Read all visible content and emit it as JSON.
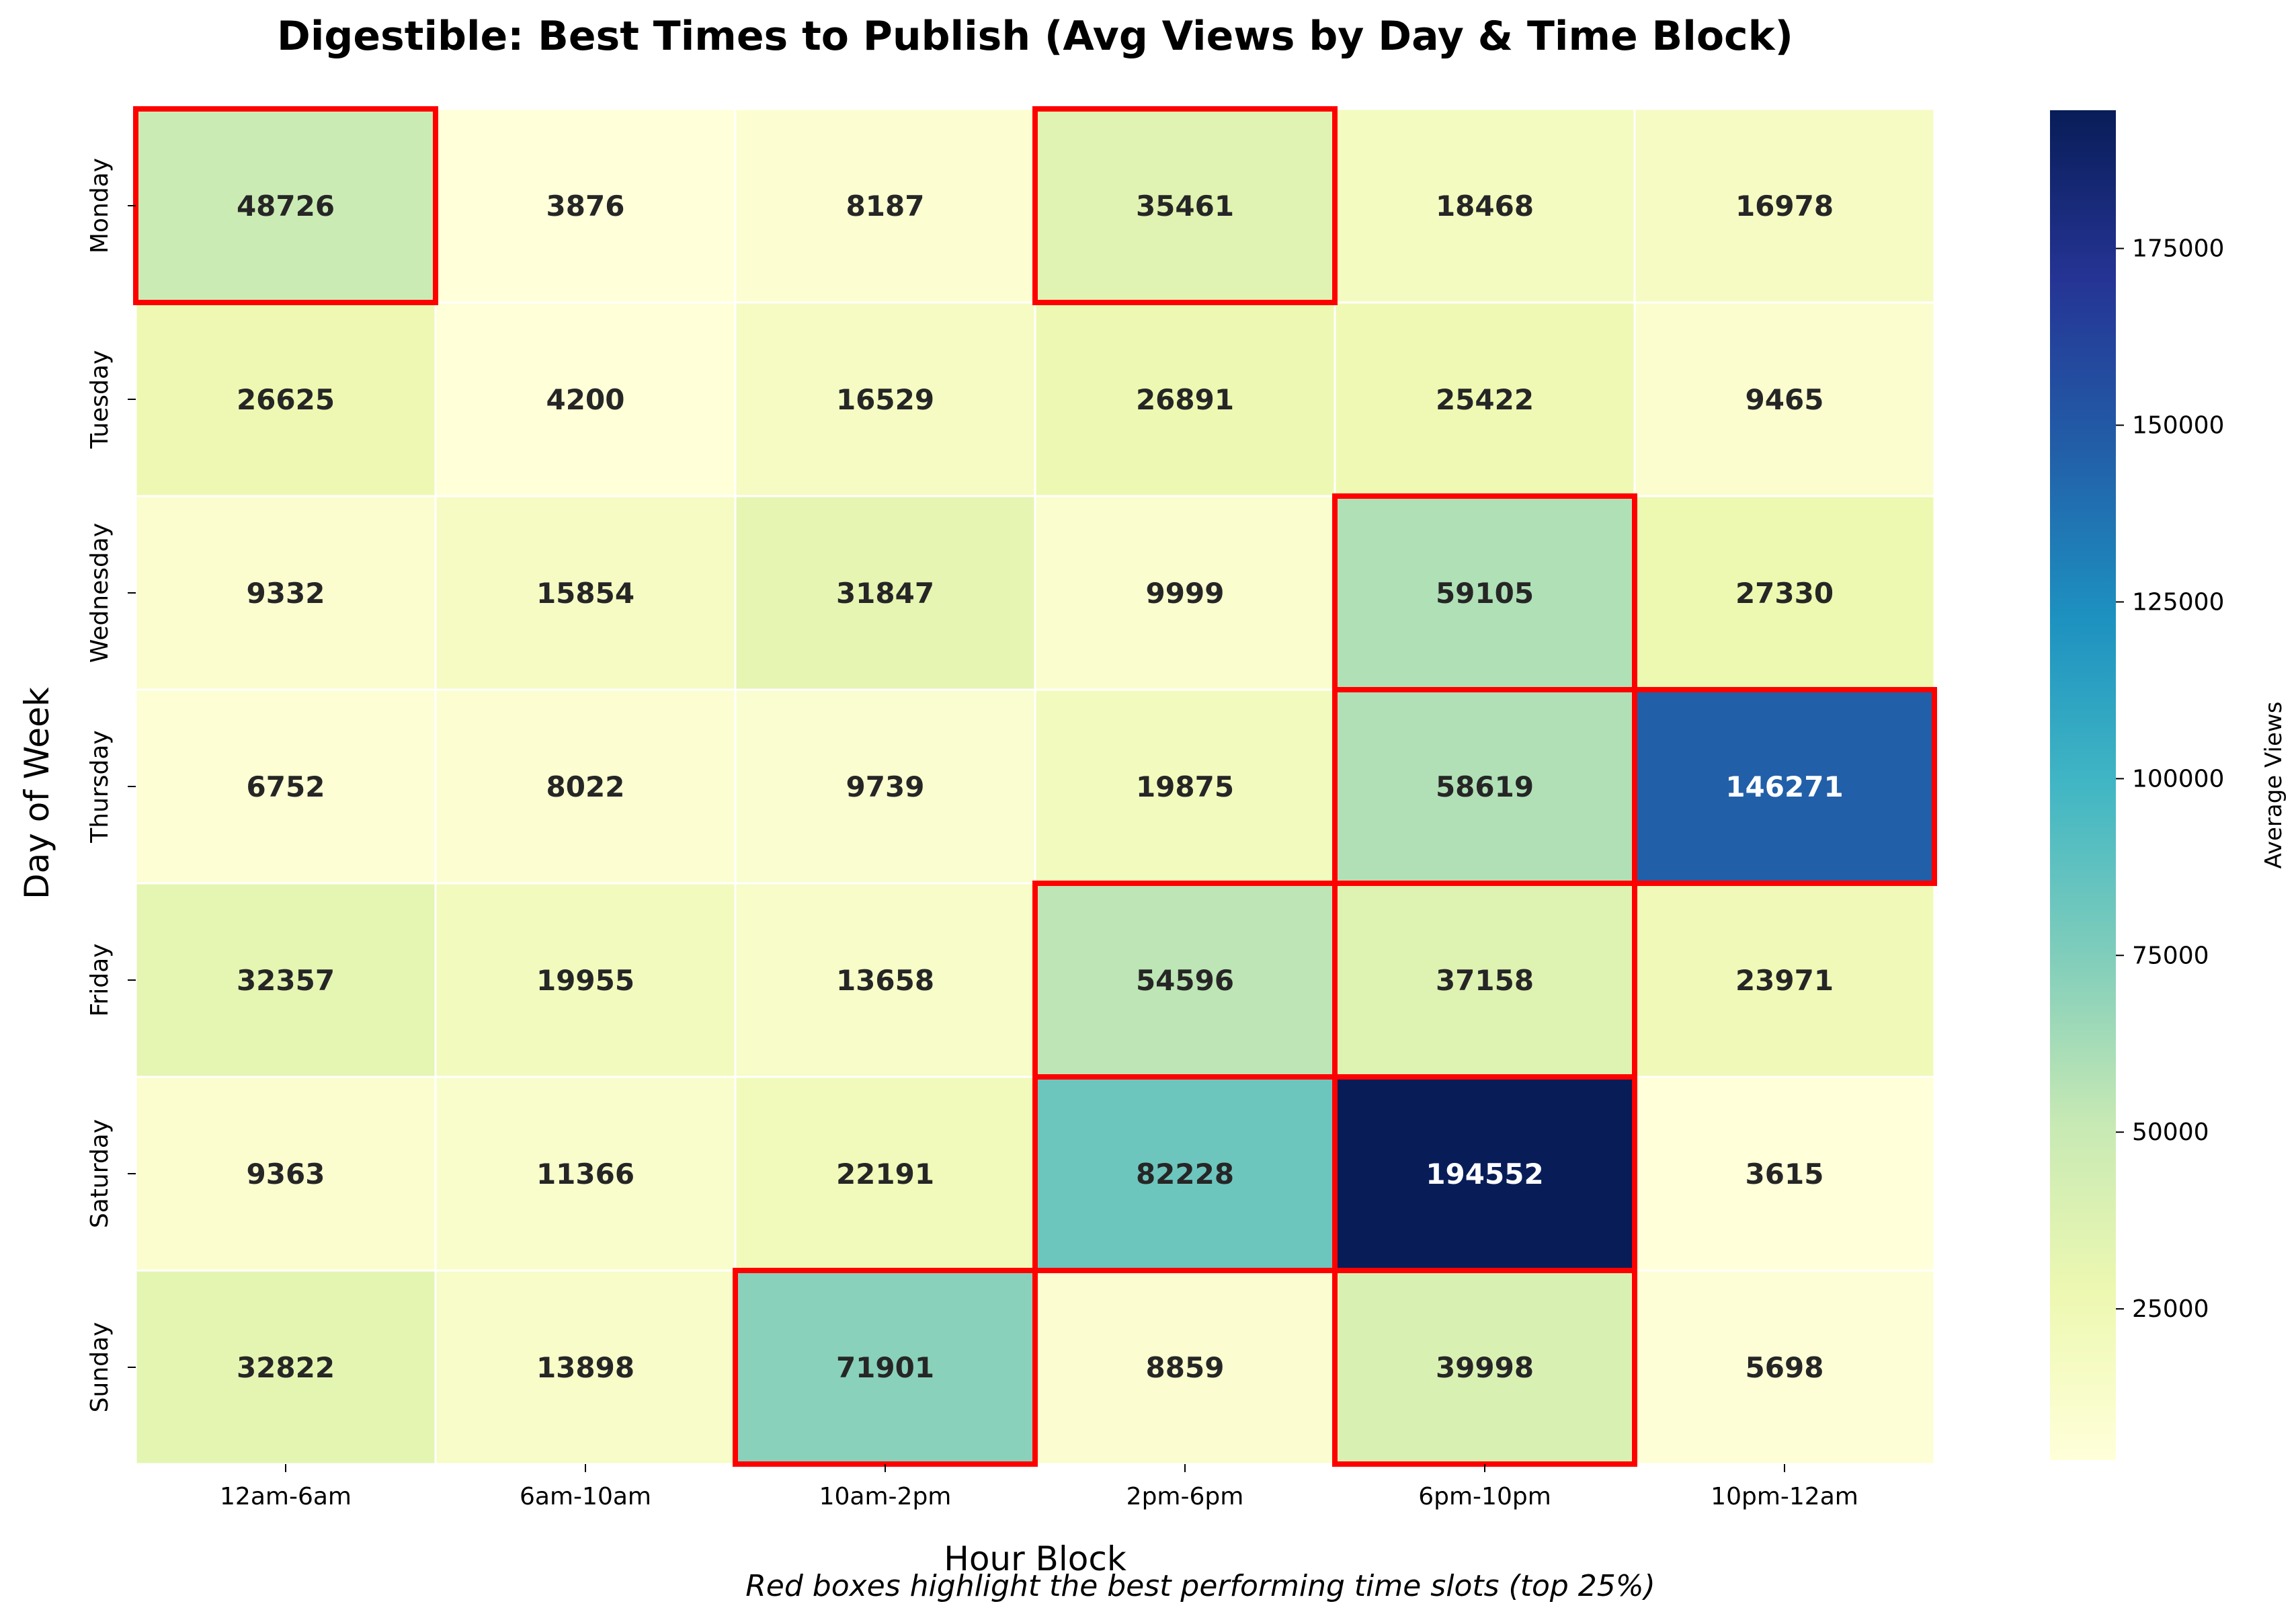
{
  "chart_data": {
    "type": "heatmap",
    "title": "Digestible: Best Times to Publish (Avg Views by Day & Time Block)",
    "xlabel": "Hour Block",
    "ylabel": "Day of Week",
    "x_categories": [
      "12am-6am",
      "6am-10am",
      "10am-2pm",
      "2pm-6pm",
      "6pm-10pm",
      "10pm-12am"
    ],
    "y_categories": [
      "Monday",
      "Tuesday",
      "Wednesday",
      "Thursday",
      "Friday",
      "Saturday",
      "Sunday"
    ],
    "values": [
      [
        48726,
        3876,
        8187,
        35461,
        18468,
        16978
      ],
      [
        26625,
        4200,
        16529,
        26891,
        25422,
        9465
      ],
      [
        9332,
        15854,
        31847,
        9999,
        59105,
        27330
      ],
      [
        6752,
        8022,
        9739,
        19875,
        58619,
        146271
      ],
      [
        32357,
        19955,
        13658,
        54596,
        37158,
        23971
      ],
      [
        9363,
        11366,
        22191,
        82228,
        194552,
        3615
      ],
      [
        32822,
        13898,
        71901,
        8859,
        39998,
        5698
      ]
    ],
    "highlighted_cells": [
      [
        "Monday",
        "12am-6am"
      ],
      [
        "Monday",
        "2pm-6pm"
      ],
      [
        "Wednesday",
        "6pm-10pm"
      ],
      [
        "Thursday",
        "6pm-10pm"
      ],
      [
        "Thursday",
        "10pm-12am"
      ],
      [
        "Friday",
        "2pm-6pm"
      ],
      [
        "Friday",
        "6pm-10pm"
      ],
      [
        "Saturday",
        "2pm-6pm"
      ],
      [
        "Saturday",
        "6pm-10pm"
      ],
      [
        "Sunday",
        "10am-2pm"
      ],
      [
        "Sunday",
        "6pm-10pm"
      ]
    ],
    "highlight_color": "#ff0000",
    "colormap": "YlGnBu",
    "colorbar": {
      "label": "Average Views",
      "range": [
        3615,
        194552
      ],
      "ticks": [
        25000,
        50000,
        75000,
        100000,
        125000,
        150000,
        175000
      ],
      "tick_labels": [
        "25000",
        "50000",
        "75000",
        "100000",
        "125000",
        "150000",
        "175000"
      ]
    },
    "caption": "Red boxes highlight the best performing time slots (top 25%)"
  }
}
